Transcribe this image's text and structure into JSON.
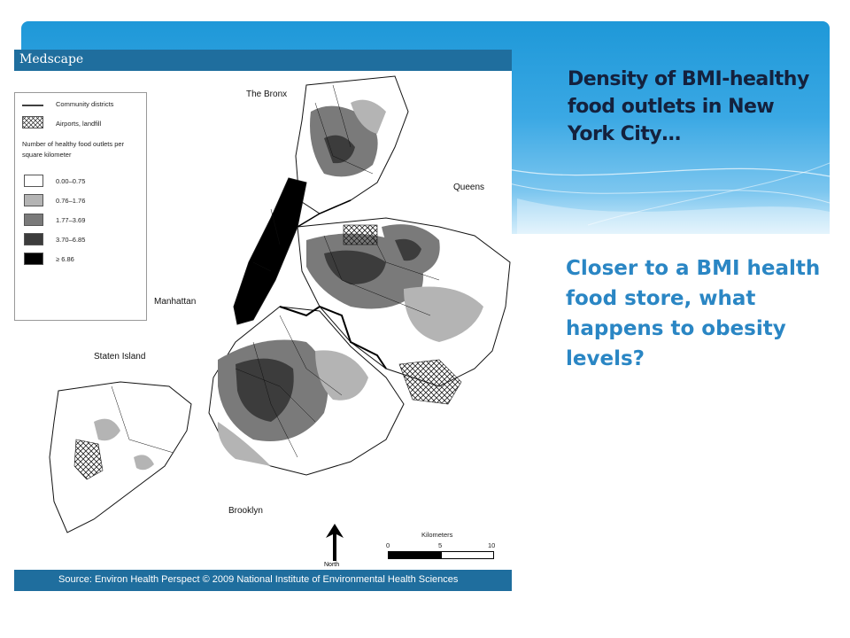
{
  "slide": {
    "title": "Density of BMI-healthy food outlets in New York City…",
    "question": "Closer to a BMI health food store, what happens to obesity levels?"
  },
  "figure": {
    "publisher": "Medscape",
    "source": "Source: Environ Health Perspect © 2009 National Institute of Environmental Health Sciences",
    "legend": {
      "community_districts": "Community districts",
      "airports": "Airports, landfill",
      "title": "Number of healthy food outlets per square kilometer",
      "classes": [
        {
          "label": "0.00–0.75",
          "color": "#ffffff"
        },
        {
          "label": "0.76–1.76",
          "color": "#b4b4b4"
        },
        {
          "label": "1.77–3.69",
          "color": "#7a7a7a"
        },
        {
          "label": "3.70–6.85",
          "color": "#3c3c3c"
        },
        {
          "label": "≥ 6.86",
          "color": "#000000"
        }
      ]
    },
    "boroughs": {
      "bronx": "The Bronx",
      "queens": "Queens",
      "manhattan": "Manhattan",
      "staten_island": "Staten Island",
      "brooklyn": "Brooklyn"
    },
    "scale": {
      "title": "Kilometers",
      "ticks": [
        "0",
        "5",
        "10"
      ]
    },
    "north": "North"
  }
}
